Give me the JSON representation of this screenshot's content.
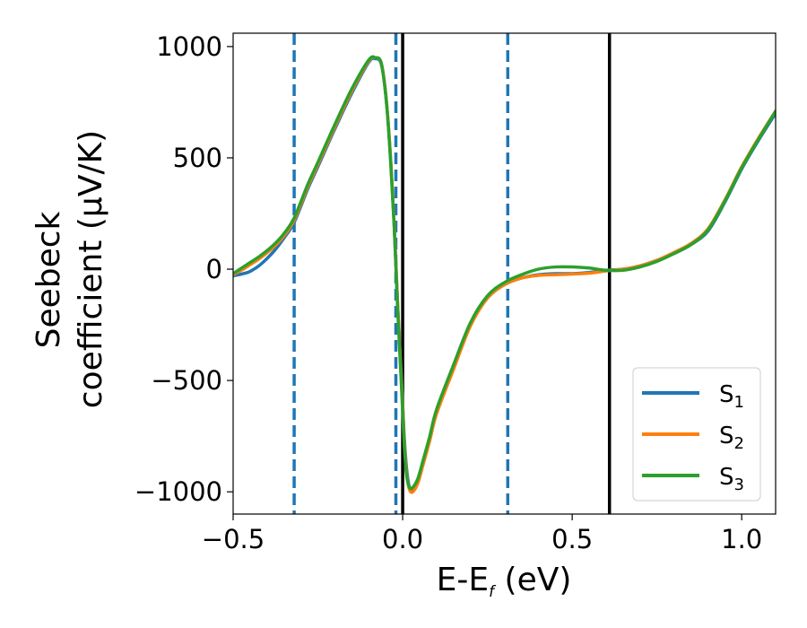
{
  "chart_data": {
    "type": "line",
    "xlabel": "E-E_f (eV)",
    "xlabel_main": "E-E",
    "xlabel_sub": "f",
    "xlabel_unit": " (eV)",
    "ylabel_line1": "Seebeck",
    "ylabel_line2": "coefficient  (μV/K)",
    "xlim": [
      -0.5,
      1.1
    ],
    "ylim": [
      -1100,
      1060
    ],
    "xticks": [
      -0.5,
      0.0,
      0.5,
      1.0
    ],
    "xtick_labels": [
      "−0.5",
      "0.0",
      "0.5",
      "1.0"
    ],
    "yticks": [
      -1000,
      -500,
      0,
      500,
      1000
    ],
    "ytick_labels": [
      "−1000",
      "−500",
      "0",
      "500",
      "1000"
    ],
    "grid": false,
    "legend_position": "lower-right",
    "vlines_dashed": [
      -0.32,
      -0.02,
      0.31
    ],
    "vlines_solid": [
      0.0,
      0.61
    ],
    "vline_dashed_color": "#1f77b4",
    "vline_solid_color": "#000000",
    "series": [
      {
        "name": "S",
        "sub": "1",
        "color": "#1f77b4",
        "x": [
          -0.5,
          -0.47,
          -0.45,
          -0.42,
          -0.38,
          -0.35,
          -0.32,
          -0.28,
          -0.25,
          -0.2,
          -0.15,
          -0.1,
          -0.08,
          -0.065,
          -0.055,
          -0.045,
          -0.035,
          -0.025,
          -0.015,
          -0.005,
          0.0,
          0.005,
          0.012,
          0.02,
          0.03,
          0.045,
          0.06,
          0.08,
          0.1,
          0.15,
          0.2,
          0.25,
          0.3,
          0.35,
          0.4,
          0.45,
          0.5,
          0.55,
          0.6,
          0.65,
          0.7,
          0.75,
          0.8,
          0.85,
          0.9,
          0.95,
          1.0,
          1.05,
          1.1
        ],
        "y": [
          -30,
          -20,
          -10,
          20,
          80,
          140,
          210,
          360,
          460,
          630,
          790,
          930,
          945,
          930,
          850,
          700,
          480,
          200,
          -150,
          -450,
          -600,
          -760,
          -900,
          -980,
          -990,
          -950,
          -870,
          -760,
          -640,
          -440,
          -250,
          -130,
          -70,
          -40,
          -25,
          -20,
          -20,
          -15,
          -5,
          0,
          15,
          40,
          70,
          110,
          170,
          300,
          450,
          580,
          700
        ]
      },
      {
        "name": "S",
        "sub": "2",
        "color": "#ff7f0e",
        "x": [
          -0.5,
          -0.47,
          -0.45,
          -0.42,
          -0.38,
          -0.35,
          -0.32,
          -0.28,
          -0.25,
          -0.2,
          -0.15,
          -0.1,
          -0.08,
          -0.065,
          -0.055,
          -0.045,
          -0.035,
          -0.025,
          -0.015,
          -0.005,
          0.0,
          0.005,
          0.012,
          0.02,
          0.03,
          0.045,
          0.06,
          0.08,
          0.1,
          0.15,
          0.2,
          0.25,
          0.3,
          0.35,
          0.4,
          0.45,
          0.5,
          0.55,
          0.6,
          0.65,
          0.7,
          0.75,
          0.8,
          0.85,
          0.9,
          0.95,
          1.0,
          1.05,
          1.1
        ],
        "y": [
          -25,
          0,
          20,
          50,
          100,
          150,
          220,
          370,
          470,
          640,
          800,
          935,
          950,
          935,
          855,
          705,
          485,
          205,
          -150,
          -460,
          -610,
          -780,
          -920,
          -990,
          -1000,
          -960,
          -880,
          -770,
          -650,
          -450,
          -255,
          -130,
          -70,
          -40,
          -28,
          -25,
          -22,
          -18,
          -8,
          0,
          15,
          40,
          75,
          115,
          180,
          310,
          460,
          590,
          710
        ]
      },
      {
        "name": "S",
        "sub": "3",
        "color": "#2ca02c",
        "x": [
          -0.5,
          -0.47,
          -0.45,
          -0.42,
          -0.38,
          -0.35,
          -0.32,
          -0.28,
          -0.25,
          -0.2,
          -0.15,
          -0.1,
          -0.08,
          -0.065,
          -0.055,
          -0.045,
          -0.035,
          -0.025,
          -0.015,
          -0.005,
          0.0,
          0.005,
          0.012,
          0.02,
          0.03,
          0.045,
          0.06,
          0.08,
          0.1,
          0.15,
          0.2,
          0.25,
          0.3,
          0.35,
          0.4,
          0.45,
          0.5,
          0.55,
          0.6,
          0.65,
          0.7,
          0.75,
          0.8,
          0.85,
          0.9,
          0.95,
          1.0,
          1.05,
          1.1
        ],
        "y": [
          -20,
          10,
          30,
          60,
          110,
          160,
          230,
          380,
          480,
          650,
          810,
          940,
          950,
          935,
          850,
          700,
          470,
          190,
          -170,
          -480,
          -640,
          -800,
          -930,
          -980,
          -980,
          -940,
          -860,
          -750,
          -630,
          -430,
          -240,
          -120,
          -60,
          -25,
          0,
          10,
          10,
          5,
          -5,
          -5,
          10,
          35,
          70,
          110,
          175,
          305,
          455,
          585,
          710
        ]
      }
    ]
  }
}
